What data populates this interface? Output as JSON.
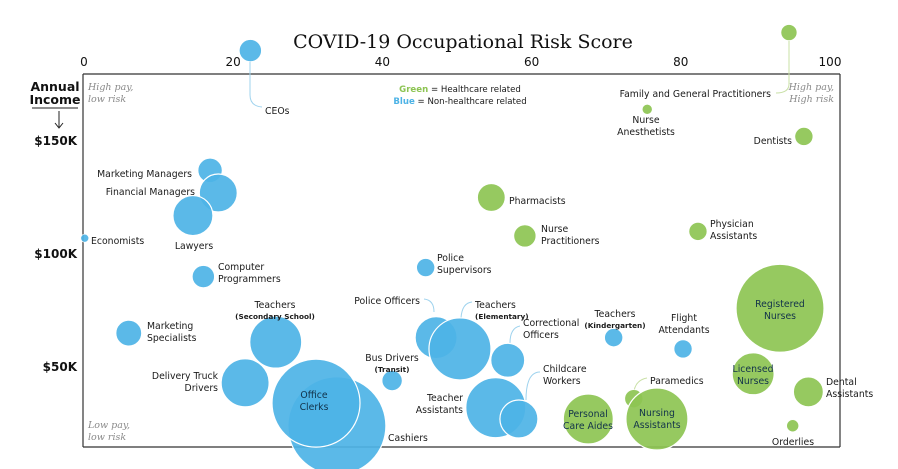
{
  "chart_data": {
    "type": "scatter",
    "subtype": "bubble",
    "title": "COVID-19 Occupational Risk Score",
    "xlabel": "COVID-19 Occupational Risk Score",
    "ylabel_lines": [
      "Annual",
      "Income"
    ],
    "xlim": [
      0,
      100
    ],
    "ylim_k": [
      0,
      200
    ],
    "x_ticks": [
      "0",
      "20",
      "40",
      "60",
      "80",
      "100"
    ],
    "x_tick_values": [
      0,
      20,
      40,
      60,
      80,
      100
    ],
    "y_ticks": [
      "$150K",
      "$100K",
      "$50K"
    ],
    "y_tick_values": [
      150,
      100,
      50
    ],
    "grid": false,
    "legend_position": "top-center",
    "legend": [
      {
        "key": "Green",
        "text": " = Healthcare related",
        "color": "#8dc453"
      },
      {
        "key": "Blue",
        "text": " = Non-healthcare related",
        "color": "#4db3e6"
      }
    ],
    "corner_labels": {
      "top_left": [
        "High pay,",
        "low risk"
      ],
      "top_right": [
        "High pay,",
        "High risk"
      ],
      "bottom_left": [
        "Low pay,",
        "low risk"
      ]
    },
    "colors": {
      "healthcare": "#8dc453",
      "non_healthcare": "#4db3e6",
      "leader_blue": "#9fd3ee",
      "leader_green": "#c9e0a6"
    },
    "series": [
      {
        "name": "CEOs",
        "risk": 22.3,
        "income_k": 190,
        "size": 11,
        "healthcare": false
      },
      {
        "name": "Family and General Practitioners",
        "risk": 94.5,
        "income_k": 198,
        "size": 8,
        "healthcare": true
      },
      {
        "name": "Nurse Anesthetists",
        "risk": 75.5,
        "income_k": 164,
        "size": 5,
        "healthcare": true
      },
      {
        "name": "Dentists",
        "risk": 96.5,
        "income_k": 152,
        "size": 9,
        "healthcare": true
      },
      {
        "name": "Marketing Managers",
        "risk": 16.9,
        "income_k": 137,
        "size": 12,
        "healthcare": false
      },
      {
        "name": "Financial Managers",
        "risk": 18.0,
        "income_k": 127,
        "size": 19,
        "healthcare": false
      },
      {
        "name": "Lawyers",
        "risk": 14.6,
        "income_k": 117,
        "size": 20,
        "healthcare": false
      },
      {
        "name": "Economists",
        "risk": 0.1,
        "income_k": 107,
        "size": 4,
        "healthcare": false
      },
      {
        "name": "Computer Programmers",
        "risk": 16.0,
        "income_k": 90,
        "size": 11,
        "healthcare": false
      },
      {
        "name": "Pharmacists",
        "risk": 54.6,
        "income_k": 125,
        "size": 14,
        "healthcare": true
      },
      {
        "name": "Nurse Practitioners",
        "risk": 59.1,
        "income_k": 108,
        "size": 11,
        "healthcare": true
      },
      {
        "name": "Physician Assistants",
        "risk": 82.3,
        "income_k": 110,
        "size": 9,
        "healthcare": true
      },
      {
        "name": "Police Supervisors",
        "risk": 45.8,
        "income_k": 94,
        "size": 9,
        "healthcare": false
      },
      {
        "name": "Police Officers",
        "risk": 47.2,
        "income_k": 63,
        "size": 21,
        "healthcare": false
      },
      {
        "name": "Teachers (Elementary)",
        "risk": 50.4,
        "income_k": 58,
        "size": 31,
        "healthcare": false
      },
      {
        "name": "Correctional Officers",
        "risk": 56.8,
        "income_k": 53,
        "size": 17,
        "healthcare": false
      },
      {
        "name": "Teachers (Kindergarten)",
        "risk": 71.0,
        "income_k": 63,
        "size": 9,
        "healthcare": false
      },
      {
        "name": "Flight Attendants",
        "risk": 80.3,
        "income_k": 58,
        "size": 9,
        "healthcare": false
      },
      {
        "name": "Registered Nurses",
        "risk": 93.3,
        "income_k": 76,
        "size": 44,
        "healthcare": true
      },
      {
        "name": "Teachers (Secondary School)",
        "risk": 25.7,
        "income_k": 61,
        "size": 26,
        "healthcare": false
      },
      {
        "name": "Marketing Specialists",
        "risk": 6.0,
        "income_k": 65,
        "size": 13,
        "healthcare": false
      },
      {
        "name": "Delivery Truck Drivers",
        "risk": 21.6,
        "income_k": 43,
        "size": 24,
        "healthcare": false
      },
      {
        "name": "Cashiers",
        "risk": 33.9,
        "income_k": 24,
        "size": 49,
        "healthcare": false
      },
      {
        "name": "Office Clerks",
        "risk": 31.1,
        "income_k": 34,
        "size": 44,
        "healthcare": false
      },
      {
        "name": "Bus Drivers (Transit)",
        "risk": 41.3,
        "income_k": 44,
        "size": 10,
        "healthcare": false
      },
      {
        "name": "Teacher Assistants",
        "risk": 55.2,
        "income_k": 32,
        "size": 30,
        "healthcare": false
      },
      {
        "name": "Childcare Workers",
        "risk": 58.3,
        "income_k": 27,
        "size": 19,
        "healthcare": false
      },
      {
        "name": "Personal Care Aides",
        "risk": 67.6,
        "income_k": 27,
        "size": 25,
        "healthcare": true
      },
      {
        "name": "Paramedics",
        "risk": 73.7,
        "income_k": 36,
        "size": 9,
        "healthcare": true
      },
      {
        "name": "Nursing Assistants",
        "risk": 76.8,
        "income_k": 27,
        "size": 31,
        "healthcare": true
      },
      {
        "name": "Licensed Nurses",
        "risk": 89.7,
        "income_k": 47,
        "size": 21,
        "healthcare": true
      },
      {
        "name": "Dental Assistants",
        "risk": 97.1,
        "income_k": 39,
        "size": 15,
        "healthcare": true
      },
      {
        "name": "Orderlies",
        "risk": 95.0,
        "income_k": 24,
        "size": 6,
        "healthcare": true
      }
    ],
    "labels": [
      {
        "for": "CEOs",
        "lines": [
          "CEOs"
        ]
      },
      {
        "for": "Family and General Practitioners",
        "lines": [
          "Family and General Practitioners"
        ]
      },
      {
        "for": "Nurse Anesthetists",
        "lines": [
          "Nurse",
          "Anesthetists"
        ]
      },
      {
        "for": "Dentists",
        "lines": [
          "Dentists"
        ]
      },
      {
        "for": "Marketing Managers",
        "lines": [
          "Marketing Managers"
        ]
      },
      {
        "for": "Financial Managers",
        "lines": [
          "Financial Managers"
        ]
      },
      {
        "for": "Lawyers",
        "lines": [
          "Lawyers"
        ]
      },
      {
        "for": "Economists",
        "lines": [
          "Economists"
        ]
      },
      {
        "for": "Computer Programmers",
        "lines": [
          "Computer",
          "Programmers"
        ]
      },
      {
        "for": "Pharmacists",
        "lines": [
          "Pharmacists"
        ]
      },
      {
        "for": "Nurse Practitioners",
        "lines": [
          "Nurse",
          "Practitioners"
        ]
      },
      {
        "for": "Physician Assistants",
        "lines": [
          "Physician",
          "Assistants"
        ]
      },
      {
        "for": "Police Supervisors",
        "lines": [
          "Police",
          "Supervisors"
        ]
      },
      {
        "for": "Police Officers",
        "lines": [
          "Police Officers"
        ]
      },
      {
        "for": "Teachers (Elementary)",
        "lines": [
          "Teachers"
        ],
        "sub": "(Elementary)"
      },
      {
        "for": "Correctional Officers",
        "lines": [
          "Correctional",
          "Officers"
        ]
      },
      {
        "for": "Teachers (Kindergarten)",
        "lines": [
          "Teachers"
        ],
        "sub": "(Kindergarten)"
      },
      {
        "for": "Flight Attendants",
        "lines": [
          "Flight",
          "Attendants"
        ]
      },
      {
        "for": "Registered Nurses",
        "lines": [
          "Registered",
          "Nurses"
        ]
      },
      {
        "for": "Teachers (Secondary School)",
        "lines": [
          "Teachers"
        ],
        "sub": "(Secondary School)"
      },
      {
        "for": "Marketing Specialists",
        "lines": [
          "Marketing",
          "Specialists"
        ]
      },
      {
        "for": "Delivery Truck Drivers",
        "lines": [
          "Delivery Truck",
          "Drivers"
        ]
      },
      {
        "for": "Cashiers",
        "lines": [
          "Cashiers"
        ]
      },
      {
        "for": "Office Clerks",
        "lines": [
          "Office",
          "Clerks"
        ]
      },
      {
        "for": "Bus Drivers (Transit)",
        "lines": [
          "Bus Drivers"
        ],
        "sub": "(Transit)"
      },
      {
        "for": "Teacher Assistants",
        "lines": [
          "Teacher",
          "Assistants"
        ]
      },
      {
        "for": "Childcare Workers",
        "lines": [
          "Childcare",
          "Workers"
        ]
      },
      {
        "for": "Personal Care Aides",
        "lines": [
          "Personal",
          "Care Aides"
        ]
      },
      {
        "for": "Paramedics",
        "lines": [
          "Paramedics"
        ]
      },
      {
        "for": "Nursing Assistants",
        "lines": [
          "Nursing",
          "Assistants"
        ]
      },
      {
        "for": "Licensed Nurses",
        "lines": [
          "Licensed",
          "Nurses"
        ]
      },
      {
        "for": "Dental Assistants",
        "lines": [
          "Dental",
          "Assistants"
        ]
      },
      {
        "for": "Orderlies",
        "lines": [
          "Orderlies"
        ]
      }
    ]
  }
}
